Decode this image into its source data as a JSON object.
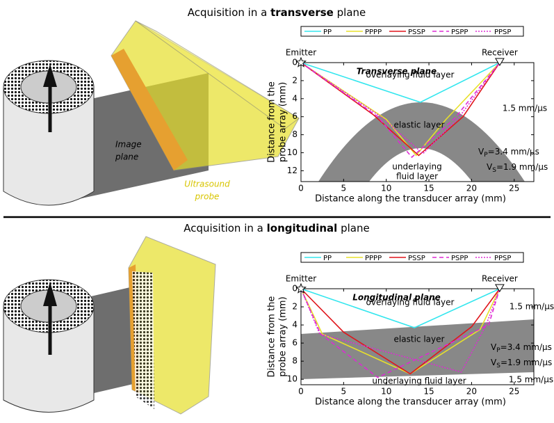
{
  "panels": [
    {
      "heading": {
        "prefix": "Acquisition in a",
        "bold": "transverse",
        "suffix": "plane"
      },
      "image_plane": [
        "Image",
        "plane"
      ],
      "probe": [
        "Ultrasound",
        "probe"
      ]
    },
    {
      "heading": {
        "prefix": "Acquisition in a",
        "bold": "longitudinal",
        "suffix": "plane"
      }
    }
  ],
  "chart_data": [
    {
      "type": "line",
      "title": "Transverse plane",
      "xlabel": "Distance along the transducer array (mm)",
      "ylabel": [
        "Distance from the",
        "probe array (mm)"
      ],
      "xlim": [
        0,
        27.3
      ],
      "ylim": [
        0,
        13.2
      ],
      "y_reversed": true,
      "xticks": [
        0,
        5,
        10,
        15,
        20,
        25
      ],
      "yticks": [
        0,
        2,
        4,
        6,
        8,
        10,
        12
      ],
      "emitter": "Emitter",
      "receiver": "Receiver",
      "annotations": {
        "upper": "overlaying fluid layer",
        "speed": "1.5 mm/μs",
        "elastic": "elastic layer",
        "lower": [
          "underlaying",
          "fluid layer"
        ],
        "vp": {
          "symbol": "V",
          "sub": "P",
          "text": "=3.4 mm/μs"
        },
        "vs": {
          "symbol": "V",
          "sub": "S",
          "text": "=1.9 mm/μs"
        }
      },
      "series": [
        {
          "name": "PP",
          "color": "#33e6ee",
          "dash": "solid",
          "x": [
            0,
            14,
            23.3
          ],
          "values": [
            0,
            4.4,
            0
          ]
        },
        {
          "name": "PPPP",
          "color": "#e8e02a",
          "dash": "solid",
          "x": [
            0,
            10,
            13.5,
            17,
            23.3
          ],
          "values": [
            0,
            6.3,
            10.3,
            6.3,
            0
          ]
        },
        {
          "name": "PSSP",
          "color": "#e0151b",
          "dash": "solid",
          "x": [
            0,
            8.5,
            13.8,
            19,
            23.3
          ],
          "values": [
            0,
            5.8,
            10.3,
            6,
            0
          ]
        },
        {
          "name": "PSPP",
          "color": "#de2ad4",
          "dash": "dashed",
          "x": [
            0,
            9,
            13,
            18,
            23.3
          ],
          "values": [
            0,
            6,
            10.5,
            6.2,
            0
          ]
        },
        {
          "name": "PPSP",
          "color": "#de2ad4",
          "dash": "dotted",
          "x": [
            0,
            9.5,
            14.3,
            18.5,
            23.3
          ],
          "values": [
            0,
            6.1,
            10.1,
            6.1,
            0
          ]
        }
      ]
    },
    {
      "type": "line",
      "title": "Longitudinal plane",
      "xlabel": "Distance along the transducer array (mm)",
      "ylabel": [
        "Distance from the",
        "probe array (mm)"
      ],
      "xlim": [
        0,
        27.3
      ],
      "ylim": [
        0,
        10.6
      ],
      "y_reversed": true,
      "xticks": [
        0,
        5,
        10,
        15,
        20,
        25
      ],
      "yticks": [
        0,
        2,
        4,
        6,
        8,
        10
      ],
      "emitter": "Emitter",
      "receiver": "Receiver",
      "annotations": {
        "upper": "overlaying fluid layer",
        "speed": "1.5 mm/μs",
        "elastic": "elastic layer",
        "lower": "underlaying fluid layer",
        "speed2": "1.5 mm/μs",
        "vp": {
          "symbol": "V",
          "sub": "P",
          "text": "=3.4 mm/μs"
        },
        "vs": {
          "symbol": "V",
          "sub": "S",
          "text": "=1.9 mm/μs"
        }
      },
      "series": [
        {
          "name": "PP",
          "color": "#33e6ee",
          "dash": "solid",
          "x": [
            0,
            13.3,
            23.3
          ],
          "values": [
            0,
            4.3,
            0
          ]
        },
        {
          "name": "PPPP",
          "color": "#e8e02a",
          "dash": "solid",
          "x": [
            0,
            2.5,
            12.8,
            21,
            23.3
          ],
          "values": [
            0,
            5,
            9.4,
            4.5,
            0
          ]
        },
        {
          "name": "PSSP",
          "color": "#e0151b",
          "dash": "solid",
          "x": [
            0,
            5,
            12.8,
            20,
            23.3
          ],
          "values": [
            0,
            4.8,
            9.4,
            4.2,
            0
          ]
        },
        {
          "name": "PSPP",
          "color": "#de2ad4",
          "dash": "dashed",
          "x": [
            0,
            2.3,
            9,
            22,
            23.3
          ],
          "values": [
            0,
            5,
            9.8,
            4,
            0
          ]
        },
        {
          "name": "PPSP",
          "color": "#de2ad4",
          "dash": "dotted",
          "x": [
            0,
            2.2,
            18.8,
            21.7,
            23.3
          ],
          "values": [
            0,
            5,
            9.2,
            4,
            0
          ]
        }
      ]
    }
  ]
}
